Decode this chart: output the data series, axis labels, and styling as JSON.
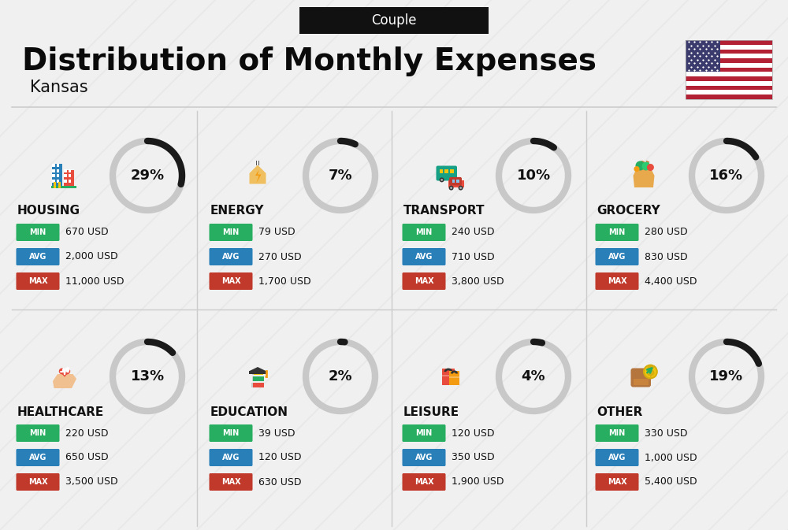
{
  "title": "Distribution of Monthly Expenses",
  "subtitle": "Kansas",
  "tab_label": "Couple",
  "bg_color": "#f0f0f0",
  "categories": [
    {
      "name": "HOUSING",
      "percent": 29,
      "min_val": "670 USD",
      "avg_val": "2,000 USD",
      "max_val": "11,000 USD",
      "row": 0,
      "col": 0
    },
    {
      "name": "ENERGY",
      "percent": 7,
      "min_val": "79 USD",
      "avg_val": "270 USD",
      "max_val": "1,700 USD",
      "row": 0,
      "col": 1
    },
    {
      "name": "TRANSPORT",
      "percent": 10,
      "min_val": "240 USD",
      "avg_val": "710 USD",
      "max_val": "3,800 USD",
      "row": 0,
      "col": 2
    },
    {
      "name": "GROCERY",
      "percent": 16,
      "min_val": "280 USD",
      "avg_val": "830 USD",
      "max_val": "4,400 USD",
      "row": 0,
      "col": 3
    },
    {
      "name": "HEALTHCARE",
      "percent": 13,
      "min_val": "220 USD",
      "avg_val": "650 USD",
      "max_val": "3,500 USD",
      "row": 1,
      "col": 0
    },
    {
      "name": "EDUCATION",
      "percent": 2,
      "min_val": "39 USD",
      "avg_val": "120 USD",
      "max_val": "630 USD",
      "row": 1,
      "col": 1
    },
    {
      "name": "LEISURE",
      "percent": 4,
      "min_val": "120 USD",
      "avg_val": "350 USD",
      "max_val": "1,900 USD",
      "row": 1,
      "col": 2
    },
    {
      "name": "OTHER",
      "percent": 19,
      "min_val": "330 USD",
      "avg_val": "1,000 USD",
      "max_val": "5,400 USD",
      "row": 1,
      "col": 3
    }
  ],
  "color_min": "#27ae60",
  "color_avg": "#2980b9",
  "color_max": "#c0392b",
  "ring_bg": "#c8c8c8",
  "ring_fg": "#1a1a1a",
  "sep_color": "#cccccc",
  "stripe_color": "#dadada",
  "title_size": 28,
  "subtitle_size": 15,
  "tab_size": 12,
  "name_size": 11,
  "badge_label_size": 7,
  "badge_value_size": 9,
  "ring_pct_size": 13
}
